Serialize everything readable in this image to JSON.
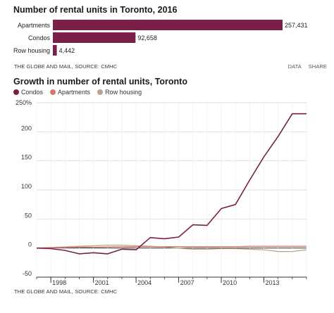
{
  "charts": {
    "bar_title": "Number of rental units in Toronto, 2016",
    "line_title": "Growth in number of rental units, Toronto",
    "footer_source": "THE GLOBE AND MAIL, SOURCE: CMHC",
    "footer_links": [
      "DATA",
      "SHARE"
    ]
  },
  "colors": {
    "condos": "#7a2048",
    "apartments": "#d9786a",
    "row_housing": "#bba388",
    "bar": "#7a2048"
  },
  "chart_data": [
    {
      "type": "bar",
      "orientation": "horizontal",
      "title": "Number of rental units in Toronto, 2016",
      "categories": [
        "Apartments",
        "Condos",
        "Row housing"
      ],
      "values": [
        257431,
        92658,
        4442
      ],
      "value_labels": [
        "257,431",
        "92,658",
        "4,442"
      ]
    },
    {
      "type": "line",
      "title": "Growth in number of rental units, Toronto",
      "x": [
        1997,
        1998,
        1999,
        2000,
        2001,
        2002,
        2003,
        2004,
        2005,
        2006,
        2007,
        2008,
        2009,
        2010,
        2011,
        2012,
        2013,
        2014,
        2015,
        2016
      ],
      "x_ticks": [
        1998,
        2001,
        2004,
        2007,
        2010,
        2013
      ],
      "xlim": [
        1997,
        2016
      ],
      "ylim": [
        -50,
        250
      ],
      "y_ticks": [
        -50,
        0,
        50,
        100,
        150,
        200,
        250
      ],
      "y_tick_labels": [
        "-50",
        "0",
        "50",
        "100",
        "150",
        "200",
        "250%"
      ],
      "grid": true,
      "legend_position": "top-left",
      "series": [
        {
          "name": "Condos",
          "color": "#7a2048",
          "values": [
            0,
            -1,
            -4,
            -10,
            -8,
            -10,
            -2,
            -3,
            18,
            16,
            19,
            40,
            39,
            68,
            75,
            117,
            157,
            192,
            231,
            231
          ]
        },
        {
          "name": "Apartments",
          "color": "#d9786a",
          "values": [
            0,
            0.5,
            1,
            1.5,
            1.5,
            2,
            2.5,
            2.5,
            2.5,
            2.5,
            2.5,
            2.5,
            2.5,
            2.5,
            2.5,
            3,
            3,
            3,
            3,
            3
          ]
        },
        {
          "name": "Row housing",
          "color": "#bba388",
          "values": [
            0,
            1,
            2,
            3,
            4,
            5,
            5,
            4,
            3,
            2,
            0,
            -2,
            -2,
            -1,
            -1,
            -2,
            -3,
            -6,
            -6,
            -3
          ]
        }
      ]
    }
  ]
}
